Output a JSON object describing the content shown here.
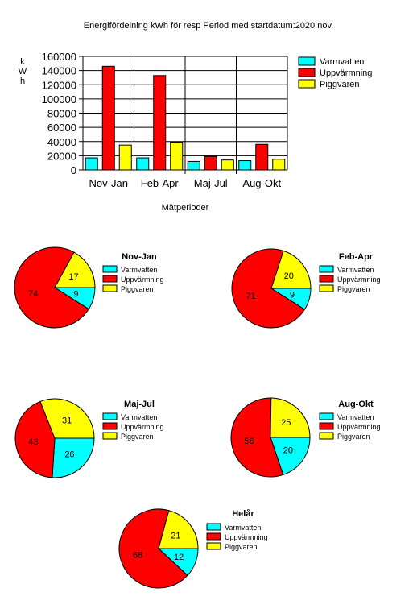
{
  "chart_data": [
    {
      "type": "bar",
      "title": "Energifördelning kWh för resp Period med startdatum:2020 nov.",
      "xlabel": "Mätperioder",
      "ylabel": "kWh",
      "ylim": [
        0,
        160000
      ],
      "yticks": [
        "160000",
        "140000",
        "120000",
        "100000",
        "80000",
        "60000",
        "40000",
        "20000",
        "0"
      ],
      "grid": true,
      "legend_position": "right",
      "categories": [
        "Nov-Jan",
        "Feb-Apr",
        "Maj-Jul",
        "Aug-Okt"
      ],
      "series": [
        {
          "name": "Varmvatten",
          "color": "#00ffff",
          "values": [
            17000,
            17000,
            12000,
            13000
          ]
        },
        {
          "name": "Uppvärmning",
          "color": "#ff0000",
          "values": [
            146000,
            133000,
            19000,
            36000
          ]
        },
        {
          "name": "Piggvaren",
          "color": "#ffff00",
          "values": [
            35000,
            39000,
            14000,
            15000
          ]
        }
      ]
    },
    {
      "type": "pie",
      "title": "Nov-Jan",
      "labels": [
        "Varmvatten",
        "Uppvärmning",
        "Piggvaren"
      ],
      "colors": [
        "#00ffff",
        "#ff0000",
        "#ffff00"
      ],
      "values": [
        9,
        74,
        17
      ]
    },
    {
      "type": "pie",
      "title": "Feb-Apr",
      "labels": [
        "Varmvatten",
        "Uppvärmning",
        "Piggvaren"
      ],
      "colors": [
        "#00ffff",
        "#ff0000",
        "#ffff00"
      ],
      "values": [
        9,
        71,
        20
      ]
    },
    {
      "type": "pie",
      "title": "Maj-Jul",
      "labels": [
        "Varmvatten",
        "Uppvärmning",
        "Piggvaren"
      ],
      "colors": [
        "#00ffff",
        "#ff0000",
        "#ffff00"
      ],
      "values": [
        26,
        43,
        31
      ]
    },
    {
      "type": "pie",
      "title": "Aug-Okt",
      "labels": [
        "Varmvatten",
        "Uppvärmning",
        "Piggvaren"
      ],
      "colors": [
        "#00ffff",
        "#ff0000",
        "#ffff00"
      ],
      "values": [
        20,
        56,
        25
      ]
    },
    {
      "type": "pie",
      "title": "Helår",
      "labels": [
        "Varmvatten",
        "Uppvärmning",
        "Piggvaren"
      ],
      "colors": [
        "#00ffff",
        "#ff0000",
        "#ffff00"
      ],
      "values": [
        12,
        68,
        21
      ]
    }
  ]
}
